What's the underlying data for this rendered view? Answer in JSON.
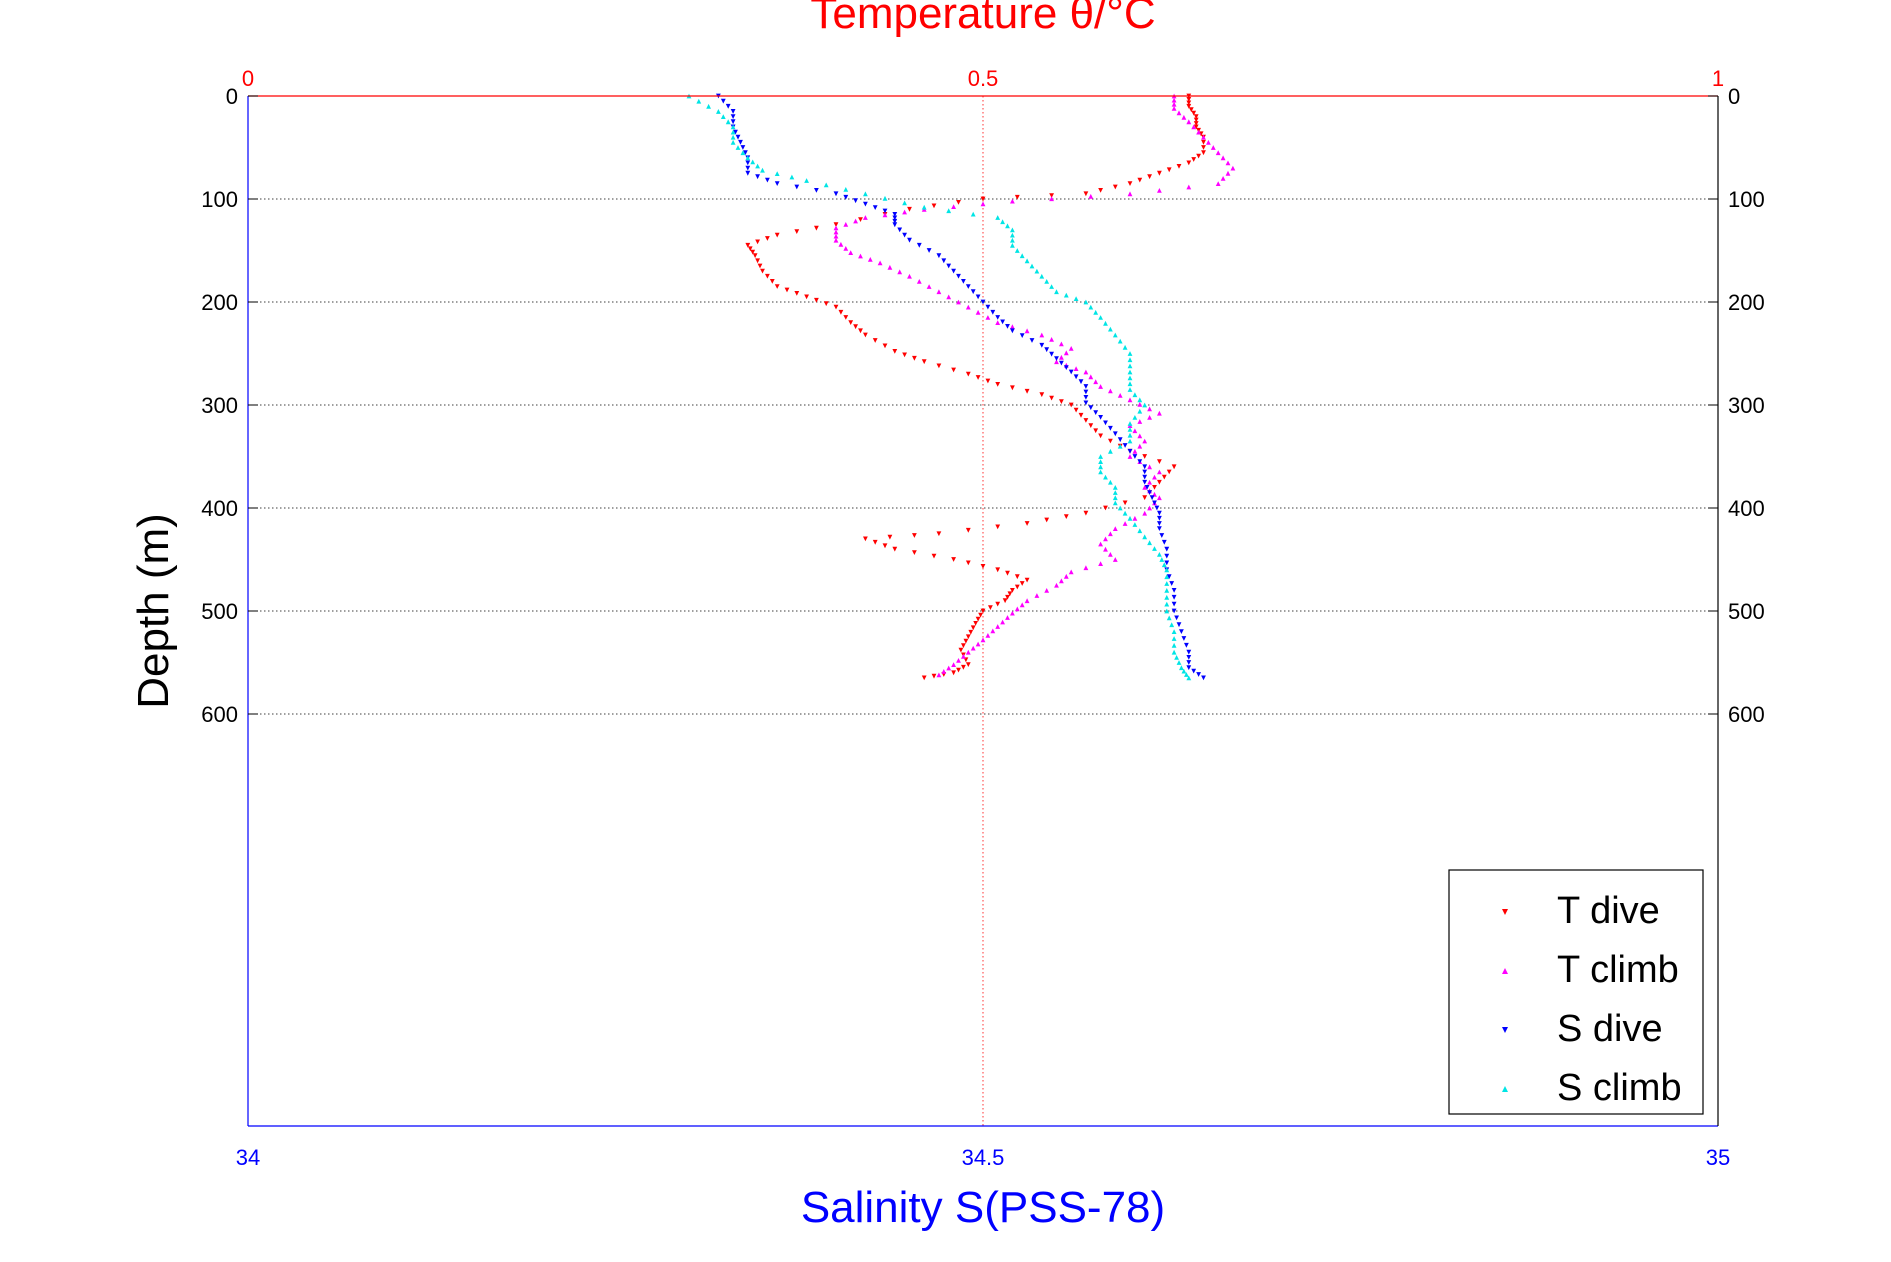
{
  "colors": {
    "temperature_axis": "#ff0000",
    "salinity_axis": "#0000ff",
    "T_dive": "#ff0000",
    "T_climb": "#ff00ff",
    "S_dive": "#0000ff",
    "S_climb": "#00e5e5"
  },
  "chart_data": {
    "type": "scatter",
    "title": "Temperature θ/°C",
    "xlabel": "Salinity S(PSS-78)",
    "ylabel": "Depth (m)",
    "top_axis": {
      "label": "Temperature θ/°C",
      "lim": [
        0,
        1
      ],
      "ticks": [
        "0",
        "0.5",
        "1"
      ]
    },
    "bottom_axis": {
      "label": "Salinity S(PSS-78)",
      "lim": [
        34,
        35
      ],
      "ticks": [
        "34",
        "34.5",
        "35"
      ]
    },
    "y_axis": {
      "label": "Depth (m)",
      "lim": [
        0,
        1000
      ],
      "reversed": true,
      "ticks": [
        "0",
        "100",
        "200",
        "300",
        "400",
        "500",
        "600"
      ]
    },
    "grid": "dotted horizontal at depth ticks; vertical at mid x",
    "legend_position": "bottom-right",
    "series": [
      {
        "name": "T dive",
        "axis": "temperature",
        "marker": "triangle-down",
        "points": [
          [
            0.64,
            0
          ],
          [
            0.64,
            10
          ],
          [
            0.645,
            20
          ],
          [
            0.645,
            30
          ],
          [
            0.65,
            40
          ],
          [
            0.65,
            55
          ],
          [
            0.64,
            65
          ],
          [
            0.62,
            75
          ],
          [
            0.6,
            85
          ],
          [
            0.57,
            95
          ],
          [
            0.5,
            100
          ],
          [
            0.45,
            110
          ],
          [
            0.4,
            125
          ],
          [
            0.36,
            135
          ],
          [
            0.34,
            145
          ],
          [
            0.345,
            155
          ],
          [
            0.35,
            170
          ],
          [
            0.36,
            185
          ],
          [
            0.38,
            195
          ],
          [
            0.4,
            205
          ],
          [
            0.41,
            220
          ],
          [
            0.42,
            232
          ],
          [
            0.44,
            248
          ],
          [
            0.46,
            258
          ],
          [
            0.49,
            270
          ],
          [
            0.51,
            280
          ],
          [
            0.54,
            290
          ],
          [
            0.56,
            300
          ],
          [
            0.57,
            315
          ],
          [
            0.58,
            330
          ],
          [
            0.6,
            345
          ],
          [
            0.63,
            360
          ],
          [
            0.62,
            375
          ],
          [
            0.61,
            390
          ],
          [
            0.57,
            405
          ],
          [
            0.53,
            415
          ],
          [
            0.47,
            425
          ],
          [
            0.42,
            430
          ],
          [
            0.44,
            440
          ],
          [
            0.48,
            450
          ],
          [
            0.51,
            460
          ],
          [
            0.53,
            470
          ],
          [
            0.52,
            480
          ],
          [
            0.515,
            490
          ],
          [
            0.5,
            500
          ],
          [
            0.495,
            512
          ],
          [
            0.49,
            525
          ],
          [
            0.485,
            538
          ],
          [
            0.49,
            552
          ],
          [
            0.48,
            560
          ],
          [
            0.46,
            565
          ]
        ]
      },
      {
        "name": "T climb",
        "axis": "temperature",
        "marker": "triangle-up",
        "points": [
          [
            0.63,
            0
          ],
          [
            0.63,
            12
          ],
          [
            0.64,
            25
          ],
          [
            0.65,
            40
          ],
          [
            0.66,
            55
          ],
          [
            0.67,
            70
          ],
          [
            0.66,
            85
          ],
          [
            0.6,
            95
          ],
          [
            0.52,
            102
          ],
          [
            0.46,
            110
          ],
          [
            0.42,
            118
          ],
          [
            0.4,
            128
          ],
          [
            0.4,
            140
          ],
          [
            0.41,
            152
          ],
          [
            0.43,
            162
          ],
          [
            0.45,
            175
          ],
          [
            0.47,
            190
          ],
          [
            0.49,
            205
          ],
          [
            0.51,
            220
          ],
          [
            0.54,
            232
          ],
          [
            0.56,
            245
          ],
          [
            0.55,
            258
          ],
          [
            0.57,
            268
          ],
          [
            0.58,
            282
          ],
          [
            0.6,
            295
          ],
          [
            0.62,
            308
          ],
          [
            0.6,
            320
          ],
          [
            0.61,
            335
          ],
          [
            0.6,
            350
          ],
          [
            0.62,
            365
          ],
          [
            0.61,
            380
          ],
          [
            0.62,
            390
          ],
          [
            0.61,
            405
          ],
          [
            0.59,
            420
          ],
          [
            0.58,
            435
          ],
          [
            0.59,
            450
          ],
          [
            0.56,
            462
          ],
          [
            0.55,
            475
          ],
          [
            0.53,
            490
          ],
          [
            0.52,
            502
          ],
          [
            0.51,
            515
          ],
          [
            0.5,
            528
          ],
          [
            0.49,
            540
          ],
          [
            0.48,
            552
          ],
          [
            0.47,
            562
          ]
        ]
      },
      {
        "name": "S dive",
        "axis": "salinity",
        "marker": "triangle-down",
        "points": [
          [
            34.32,
            0
          ],
          [
            34.33,
            15
          ],
          [
            34.33,
            30
          ],
          [
            34.335,
            45
          ],
          [
            34.34,
            60
          ],
          [
            34.34,
            75
          ],
          [
            34.36,
            85
          ],
          [
            34.4,
            95
          ],
          [
            34.42,
            105
          ],
          [
            34.44,
            115
          ],
          [
            34.44,
            125
          ],
          [
            34.45,
            140
          ],
          [
            34.47,
            155
          ],
          [
            34.48,
            170
          ],
          [
            34.49,
            185
          ],
          [
            34.5,
            200
          ],
          [
            34.51,
            215
          ],
          [
            34.52,
            228
          ],
          [
            34.54,
            242
          ],
          [
            34.55,
            255
          ],
          [
            34.56,
            268
          ],
          [
            34.57,
            282
          ],
          [
            34.57,
            298
          ],
          [
            34.58,
            312
          ],
          [
            34.59,
            328
          ],
          [
            34.6,
            345
          ],
          [
            34.61,
            360
          ],
          [
            34.61,
            375
          ],
          [
            34.615,
            390
          ],
          [
            34.62,
            405
          ],
          [
            34.62,
            420
          ],
          [
            34.625,
            440
          ],
          [
            34.625,
            460
          ],
          [
            34.63,
            480
          ],
          [
            34.63,
            500
          ],
          [
            34.635,
            520
          ],
          [
            34.64,
            540
          ],
          [
            34.64,
            555
          ],
          [
            34.65,
            565
          ]
        ]
      },
      {
        "name": "S climb",
        "axis": "salinity",
        "marker": "triangle-up",
        "points": [
          [
            34.3,
            0
          ],
          [
            34.32,
            15
          ],
          [
            34.33,
            30
          ],
          [
            34.33,
            45
          ],
          [
            34.34,
            60
          ],
          [
            34.35,
            72
          ],
          [
            34.38,
            82
          ],
          [
            34.42,
            95
          ],
          [
            34.46,
            108
          ],
          [
            34.51,
            118
          ],
          [
            34.52,
            130
          ],
          [
            34.52,
            145
          ],
          [
            34.53,
            160
          ],
          [
            34.54,
            175
          ],
          [
            34.55,
            190
          ],
          [
            34.57,
            200
          ],
          [
            34.58,
            215
          ],
          [
            34.59,
            232
          ],
          [
            34.6,
            250
          ],
          [
            34.6,
            268
          ],
          [
            34.6,
            285
          ],
          [
            34.61,
            300
          ],
          [
            34.6,
            318
          ],
          [
            34.6,
            335
          ],
          [
            34.58,
            350
          ],
          [
            34.58,
            365
          ],
          [
            34.59,
            380
          ],
          [
            34.59,
            395
          ],
          [
            34.6,
            410
          ],
          [
            34.61,
            428
          ],
          [
            34.62,
            445
          ],
          [
            34.625,
            460
          ],
          [
            34.625,
            480
          ],
          [
            34.625,
            500
          ],
          [
            34.63,
            520
          ],
          [
            34.63,
            540
          ],
          [
            34.635,
            555
          ],
          [
            34.64,
            565
          ]
        ]
      }
    ]
  }
}
